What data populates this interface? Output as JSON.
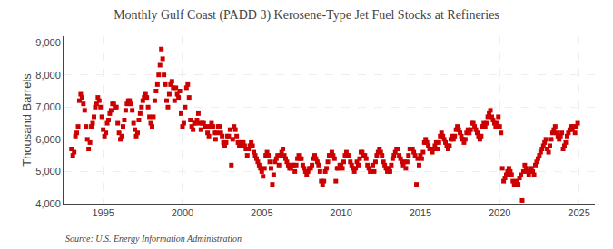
{
  "chart_data": {
    "type": "scatter",
    "title": "Monthly Gulf Coast (PADD 3) Kerosene-Type Jet Fuel Stocks at Refineries",
    "y_label": "Thousand Barrels",
    "annotations": [
      "Source: U.S. Energy Information Administration"
    ],
    "color": "#cc0000",
    "marker": "square",
    "grid": true,
    "xlim": [
      1992.5,
      2026.0
    ],
    "xticks": [
      1995,
      2000,
      2005,
      2010,
      2015,
      2020,
      2025
    ],
    "ylim": [
      4000,
      9200
    ],
    "yticks": [
      {
        "value": 4000,
        "label": "4,000"
      },
      {
        "value": 5000,
        "label": "5,000"
      },
      {
        "value": 6000,
        "label": "6,000"
      },
      {
        "value": 7000,
        "label": "7,000"
      },
      {
        "value": 8000,
        "label": "8,000"
      },
      {
        "value": 9000,
        "label": "9,000"
      }
    ],
    "x": [
      1993.0,
      1993.083,
      1993.167,
      1993.25,
      1993.333,
      1993.417,
      1993.5,
      1993.583,
      1993.667,
      1993.75,
      1993.833,
      1993.917,
      1994.0,
      1994.083,
      1994.167,
      1994.25,
      1994.333,
      1994.417,
      1994.5,
      1994.583,
      1994.667,
      1994.75,
      1994.833,
      1994.917,
      1995.0,
      1995.083,
      1995.167,
      1995.25,
      1995.333,
      1995.417,
      1995.5,
      1995.583,
      1995.667,
      1995.75,
      1995.833,
      1995.917,
      1996.0,
      1996.083,
      1996.167,
      1996.25,
      1996.333,
      1996.417,
      1996.5,
      1996.583,
      1996.667,
      1996.75,
      1996.833,
      1996.917,
      1997.0,
      1997.083,
      1997.167,
      1997.25,
      1997.333,
      1997.417,
      1997.5,
      1997.583,
      1997.667,
      1997.75,
      1997.833,
      1997.917,
      1998.0,
      1998.083,
      1998.167,
      1998.25,
      1998.333,
      1998.417,
      1998.5,
      1998.583,
      1998.667,
      1998.75,
      1998.833,
      1998.917,
      1999.0,
      1999.083,
      1999.167,
      1999.25,
      1999.333,
      1999.417,
      1999.5,
      1999.583,
      1999.667,
      1999.75,
      1999.833,
      1999.917,
      2000.0,
      2000.083,
      2000.167,
      2000.25,
      2000.333,
      2000.417,
      2000.5,
      2000.583,
      2000.667,
      2000.75,
      2000.833,
      2000.917,
      2001.0,
      2001.083,
      2001.167,
      2001.25,
      2001.333,
      2001.417,
      2001.5,
      2001.583,
      2001.667,
      2001.75,
      2001.833,
      2001.917,
      2002.0,
      2002.083,
      2002.167,
      2002.25,
      2002.333,
      2002.417,
      2002.5,
      2002.583,
      2002.667,
      2002.75,
      2002.833,
      2002.917,
      2003.0,
      2003.083,
      2003.167,
      2003.25,
      2003.333,
      2003.417,
      2003.5,
      2003.583,
      2003.667,
      2003.75,
      2003.833,
      2003.917,
      2004.0,
      2004.083,
      2004.167,
      2004.25,
      2004.333,
      2004.417,
      2004.5,
      2004.583,
      2004.667,
      2004.75,
      2004.833,
      2004.917,
      2005.0,
      2005.083,
      2005.167,
      2005.25,
      2005.333,
      2005.417,
      2005.5,
      2005.583,
      2005.667,
      2005.75,
      2005.833,
      2005.917,
      2006.0,
      2006.083,
      2006.167,
      2006.25,
      2006.333,
      2006.417,
      2006.5,
      2006.583,
      2006.667,
      2006.75,
      2006.833,
      2006.917,
      2007.0,
      2007.083,
      2007.167,
      2007.25,
      2007.333,
      2007.417,
      2007.5,
      2007.583,
      2007.667,
      2007.75,
      2007.833,
      2007.917,
      2008.0,
      2008.083,
      2008.167,
      2008.25,
      2008.333,
      2008.417,
      2008.5,
      2008.583,
      2008.667,
      2008.75,
      2008.833,
      2008.917,
      2009.0,
      2009.083,
      2009.167,
      2009.25,
      2009.333,
      2009.417,
      2009.5,
      2009.583,
      2009.667,
      2009.75,
      2009.833,
      2009.917,
      2010.0,
      2010.083,
      2010.167,
      2010.25,
      2010.333,
      2010.417,
      2010.5,
      2010.583,
      2010.667,
      2010.75,
      2010.833,
      2010.917,
      2011.0,
      2011.083,
      2011.167,
      2011.25,
      2011.333,
      2011.417,
      2011.5,
      2011.583,
      2011.667,
      2011.75,
      2011.833,
      2011.917,
      2012.0,
      2012.083,
      2012.167,
      2012.25,
      2012.333,
      2012.417,
      2012.5,
      2012.583,
      2012.667,
      2012.75,
      2012.833,
      2012.917,
      2013.0,
      2013.083,
      2013.167,
      2013.25,
      2013.333,
      2013.417,
      2013.5,
      2013.583,
      2013.667,
      2013.75,
      2013.833,
      2013.917,
      2014.0,
      2014.083,
      2014.167,
      2014.25,
      2014.333,
      2014.417,
      2014.5,
      2014.583,
      2014.667,
      2014.75,
      2014.833,
      2014.917,
      2015.0,
      2015.083,
      2015.167,
      2015.25,
      2015.333,
      2015.417,
      2015.5,
      2015.583,
      2015.667,
      2015.75,
      2015.833,
      2015.917,
      2016.0,
      2016.083,
      2016.167,
      2016.25,
      2016.333,
      2016.417,
      2016.5,
      2016.583,
      2016.667,
      2016.75,
      2016.833,
      2016.917,
      2017.0,
      2017.083,
      2017.167,
      2017.25,
      2017.333,
      2017.417,
      2017.5,
      2017.583,
      2017.667,
      2017.75,
      2017.833,
      2017.917,
      2018.0,
      2018.083,
      2018.167,
      2018.25,
      2018.333,
      2018.417,
      2018.5,
      2018.583,
      2018.667,
      2018.75,
      2018.833,
      2018.917,
      2019.0,
      2019.083,
      2019.167,
      2019.25,
      2019.333,
      2019.417,
      2019.5,
      2019.583,
      2019.667,
      2019.75,
      2019.833,
      2019.917,
      2020.0,
      2020.083,
      2020.167,
      2020.25,
      2020.333,
      2020.417,
      2020.5,
      2020.583,
      2020.667,
      2020.75,
      2020.833,
      2020.917,
      2021.0,
      2021.083,
      2021.167,
      2021.25,
      2021.333,
      2021.417,
      2021.5,
      2021.583,
      2021.667,
      2021.75,
      2021.833,
      2021.917,
      2022.0,
      2022.083,
      2022.167,
      2022.25,
      2022.333,
      2022.417,
      2022.5,
      2022.583,
      2022.667,
      2022.75,
      2022.833,
      2022.917,
      2023.0,
      2023.083,
      2023.167,
      2023.25,
      2023.333,
      2023.417,
      2023.5,
      2023.583,
      2023.667,
      2023.75,
      2023.833,
      2023.917,
      2024.0,
      2024.083,
      2024.167,
      2024.25,
      2024.333,
      2024.417,
      2024.5,
      2024.583,
      2024.667,
      2024.75,
      2024.833,
      2024.917
    ],
    "values": [
      5700,
      5500,
      5600,
      6100,
      6200,
      6400,
      7200,
      7400,
      7300,
      7100,
      6900,
      6400,
      6000,
      5700,
      5900,
      6400,
      6500,
      6700,
      7000,
      7100,
      7300,
      7200,
      7000,
      6700,
      6300,
      6100,
      6200,
      6500,
      6600,
      6800,
      6900,
      7100,
      7100,
      7000,
      7000,
      6500,
      6200,
      6000,
      6100,
      6400,
      6600,
      6900,
      7100,
      7200,
      7200,
      7100,
      6900,
      6500,
      6300,
      6100,
      6200,
      6600,
      6800,
      7000,
      7200,
      7300,
      7400,
      7300,
      7000,
      6700,
      6500,
      6400,
      6700,
      7200,
      7500,
      7700,
      8000,
      8300,
      8800,
      8500,
      8000,
      7700,
      7200,
      7000,
      7400,
      7700,
      7800,
      7600,
      7200,
      7600,
      7400,
      7300,
      7500,
      6800,
      6400,
      6500,
      7000,
      7600,
      7700,
      7300,
      6600,
      6400,
      6300,
      6500,
      6500,
      6600,
      6800,
      6500,
      6300,
      6500,
      6500,
      6400,
      6400,
      6200,
      6100,
      6400,
      6500,
      6400,
      6200,
      6000,
      6200,
      6400,
      6400,
      6200,
      6100,
      5900,
      5800,
      5900,
      6100,
      6100,
      6300,
      5200,
      6000,
      6400,
      6300,
      6100,
      5900,
      5800,
      5800,
      5900,
      5900,
      5800,
      5700,
      5500,
      5700,
      5800,
      5900,
      5800,
      5600,
      5500,
      5400,
      5300,
      5200,
      5100,
      5000,
      4850,
      5100,
      5500,
      5600,
      5500,
      5300,
      5100,
      4600,
      4900,
      5300,
      5400,
      5500,
      5200,
      5500,
      5600,
      5700,
      5500,
      5400,
      5300,
      5200,
      5100,
      5100,
      5200,
      5200,
      5000,
      5200,
      5400,
      5500,
      5400,
      5400,
      5200,
      5100,
      5000,
      4900,
      5000,
      5100,
      5100,
      5200,
      5400,
      5500,
      5400,
      5300,
      5200,
      5000,
      4700,
      4600,
      4700,
      5000,
      5100,
      5300,
      5500,
      5500,
      5600,
      5500,
      5400,
      4700,
      5100,
      5100,
      5200,
      5200,
      5100,
      5300,
      5500,
      5600,
      5500,
      5500,
      5300,
      5200,
      5100,
      5000,
      5100,
      5300,
      5200,
      5400,
      5600,
      5600,
      5500,
      5500,
      5400,
      5200,
      5100,
      5000,
      5000,
      5200,
      5000,
      5300,
      5500,
      5600,
      5700,
      5600,
      5500,
      5300,
      5200,
      5100,
      5000,
      5100,
      5000,
      5200,
      5400,
      5500,
      5600,
      5700,
      5700,
      5500,
      5400,
      5300,
      5200,
      5300,
      5100,
      5300,
      5500,
      5700,
      5700,
      5700,
      5600,
      5500,
      4600,
      5400,
      5200,
      5500,
      5400,
      5600,
      5900,
      6000,
      5900,
      5800,
      5700,
      5700,
      5600,
      5700,
      5800,
      5900,
      5700,
      5900,
      6100,
      6200,
      6100,
      6000,
      5900,
      5800,
      5700,
      5800,
      6000,
      6100,
      6000,
      6100,
      6300,
      6400,
      6300,
      6200,
      6100,
      6000,
      5900,
      6000,
      6200,
      6300,
      6200,
      6300,
      6500,
      6500,
      6400,
      6300,
      6200,
      6100,
      6000,
      6100,
      6400,
      6500,
      6400,
      6500,
      6700,
      6800,
      6900,
      6700,
      6600,
      6500,
      6400,
      6500,
      6700,
      6400,
      6200,
      5100,
      4700,
      4800,
      4900,
      5000,
      5100,
      5000,
      4900,
      4700,
      4600,
      4600,
      4700,
      4600,
      4800,
      4900,
      4100,
      5000,
      5200,
      5100,
      5000,
      4900,
      5000,
      5100,
      5000,
      4900,
      5200,
      5300,
      5400,
      5500,
      5600,
      5700,
      5800,
      5900,
      6000,
      5700,
      5600,
      5800,
      6000,
      6200,
      6300,
      6400,
      6200,
      6100,
      6000,
      6100,
      6200,
      5700,
      5800,
      5900,
      6100,
      6200,
      6300,
      6400,
      6300,
      6400,
      6200,
      6400,
      6500
    ]
  }
}
